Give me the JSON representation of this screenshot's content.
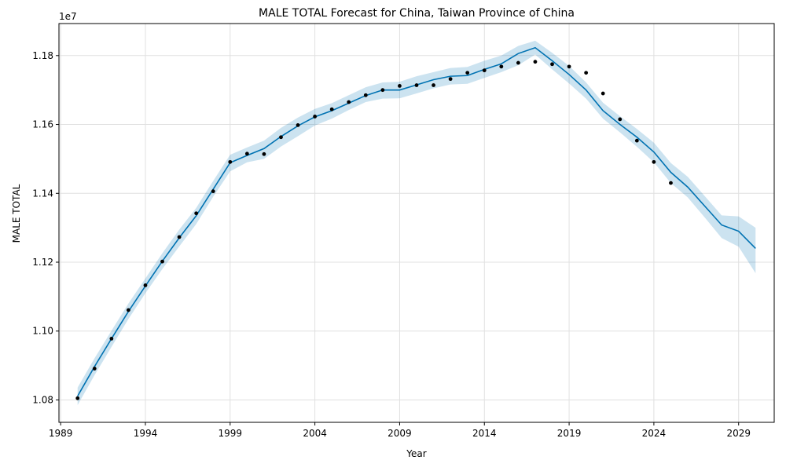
{
  "chart_data": {
    "type": "line",
    "title": "MALE TOTAL Forecast for China, Taiwan Province of China",
    "xlabel": "Year",
    "ylabel": "MALE TOTAL",
    "y_offset_label": "1e7",
    "xlim": [
      1988.9,
      2031.1
    ],
    "ylim": [
      10.735,
      11.893
    ],
    "grid": true,
    "x_ticks": [
      1989,
      1994,
      1999,
      2004,
      2009,
      2014,
      2019,
      2024,
      2029
    ],
    "y_ticks": [
      1.08,
      1.1,
      1.12,
      1.14,
      1.16,
      1.18
    ],
    "y_tick_labels": [
      "1.08",
      "1.10",
      "1.12",
      "1.14",
      "1.16",
      "1.18"
    ],
    "colors": {
      "forecast_line": "#0072B2",
      "interval_fill": "#0072B2",
      "observed": "#000000",
      "grid": "#e0e0e0"
    },
    "series": [
      {
        "role": "observed",
        "style": "scatter",
        "x": [
          1990,
          1991,
          1992,
          1993,
          1994,
          1995,
          1996,
          1997,
          1998,
          1999,
          2000,
          2001,
          2002,
          2003,
          2004,
          2005,
          2006,
          2007,
          2008,
          2009,
          2010,
          2011,
          2012,
          2013,
          2014,
          2015,
          2016,
          2017,
          2018,
          2019,
          2020,
          2021,
          2022,
          2023,
          2024,
          2025
        ],
        "y": [
          10.805,
          10.891,
          10.978,
          11.061,
          11.133,
          11.202,
          11.273,
          11.342,
          11.406,
          11.491,
          11.515,
          11.514,
          11.563,
          11.598,
          11.623,
          11.644,
          11.665,
          11.685,
          11.7,
          11.712,
          11.714,
          11.714,
          11.732,
          11.75,
          11.757,
          11.768,
          11.779,
          11.782,
          11.775,
          11.768,
          11.75,
          11.69,
          11.615,
          11.553,
          11.491,
          11.43
        ]
      },
      {
        "role": "forecast",
        "style": "line",
        "x": [
          1990,
          1991,
          1992,
          1993,
          1994,
          1995,
          1996,
          1997,
          1998,
          1999,
          2000,
          2001,
          2002,
          2003,
          2004,
          2005,
          2006,
          2007,
          2008,
          2009,
          2010,
          2011,
          2012,
          2013,
          2014,
          2015,
          2016,
          2017,
          2018,
          2019,
          2020,
          2021,
          2022,
          2023,
          2024,
          2025,
          2026,
          2027,
          2028,
          2029,
          2030
        ],
        "y": [
          10.811,
          10.897,
          10.978,
          11.057,
          11.131,
          11.203,
          11.271,
          11.335,
          11.412,
          11.489,
          11.51,
          11.53,
          11.565,
          11.596,
          11.622,
          11.64,
          11.662,
          11.684,
          11.7,
          11.7,
          11.715,
          11.73,
          11.74,
          11.742,
          11.76,
          11.776,
          11.806,
          11.823,
          11.785,
          11.745,
          11.7,
          11.64,
          11.6,
          11.563,
          11.52,
          11.461,
          11.418,
          11.363,
          11.308,
          11.29,
          11.24
        ],
        "lower": [
          10.785,
          10.872,
          10.954,
          11.035,
          11.11,
          11.18,
          11.246,
          11.311,
          11.39,
          11.464,
          11.49,
          11.5,
          11.536,
          11.566,
          11.597,
          11.617,
          11.642,
          11.665,
          11.675,
          11.676,
          11.69,
          11.705,
          11.716,
          11.718,
          11.735,
          11.752,
          11.772,
          11.803,
          11.76,
          11.719,
          11.675,
          11.617,
          11.577,
          11.535,
          11.49,
          11.43,
          11.388,
          11.33,
          11.27,
          11.245,
          11.168
        ],
        "upper": [
          10.836,
          10.921,
          11.001,
          11.08,
          11.153,
          11.226,
          11.295,
          11.358,
          11.436,
          11.512,
          11.533,
          11.553,
          11.59,
          11.62,
          11.645,
          11.662,
          11.685,
          11.708,
          11.722,
          11.724,
          11.74,
          11.752,
          11.764,
          11.767,
          11.785,
          11.8,
          11.828,
          11.843,
          11.808,
          11.77,
          11.722,
          11.663,
          11.624,
          11.587,
          11.547,
          11.488,
          11.448,
          11.392,
          11.336,
          11.333,
          11.3
        ]
      }
    ]
  }
}
